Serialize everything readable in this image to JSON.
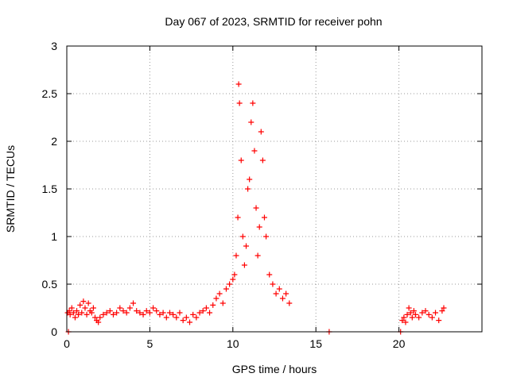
{
  "chart_data": {
    "type": "scatter",
    "title": "Day 067 of 2023, SRMTID for receiver pohn",
    "xlabel": "GPS time / hours",
    "ylabel": "SRMTID / TECUs",
    "xlim": [
      0,
      25
    ],
    "ylim": [
      0,
      3
    ],
    "xticks": [
      0,
      5,
      10,
      15,
      20
    ],
    "xtick_labels": [
      "0",
      "5",
      "10",
      "15",
      "20"
    ],
    "yticks": [
      0,
      0.5,
      1,
      1.5,
      2,
      2.5,
      3
    ],
    "ytick_labels": [
      "0",
      "0.5",
      "1",
      "1.5",
      "2",
      "2.5",
      "3"
    ],
    "grid": true,
    "marker": "+",
    "marker_color": "#ff0000",
    "series": [
      {
        "name": "SRMTID",
        "x": [
          0.05,
          0.1,
          0.15,
          0.2,
          0.3,
          0.4,
          0.5,
          0.6,
          0.7,
          0.8,
          0.9,
          1.0,
          1.1,
          1.2,
          1.3,
          1.4,
          1.5,
          1.6,
          1.7,
          1.8,
          1.9,
          2.0,
          2.2,
          2.4,
          2.6,
          2.8,
          3.0,
          3.2,
          3.4,
          3.6,
          3.8,
          4.0,
          4.2,
          4.4,
          4.6,
          4.8,
          5.0,
          5.2,
          5.4,
          5.6,
          5.8,
          6.0,
          6.2,
          6.4,
          6.6,
          6.8,
          7.0,
          7.2,
          7.4,
          7.6,
          7.8,
          8.0,
          8.2,
          8.4,
          8.6,
          8.8,
          9.0,
          9.2,
          9.4,
          9.6,
          9.8,
          10.0,
          10.1,
          10.2,
          10.3,
          10.35,
          10.4,
          10.5,
          10.6,
          10.7,
          10.8,
          10.9,
          11.0,
          11.1,
          11.2,
          11.3,
          11.4,
          11.5,
          11.6,
          11.7,
          11.8,
          11.9,
          12.0,
          12.2,
          12.4,
          12.6,
          12.8,
          13.0,
          13.2,
          13.4,
          15.8,
          20.1,
          20.2,
          20.3,
          20.4,
          20.5,
          20.6,
          20.7,
          20.8,
          20.9,
          21.0,
          21.2,
          21.4,
          21.6,
          21.8,
          22.0,
          22.2,
          22.4,
          22.6,
          22.7
        ],
        "y": [
          0.2,
          0.0,
          0.22,
          0.18,
          0.25,
          0.2,
          0.15,
          0.22,
          0.18,
          0.28,
          0.2,
          0.32,
          0.25,
          0.18,
          0.3,
          0.22,
          0.2,
          0.25,
          0.15,
          0.12,
          0.1,
          0.15,
          0.18,
          0.2,
          0.22,
          0.18,
          0.2,
          0.25,
          0.22,
          0.2,
          0.25,
          0.3,
          0.22,
          0.2,
          0.18,
          0.22,
          0.2,
          0.25,
          0.22,
          0.18,
          0.2,
          0.15,
          0.2,
          0.18,
          0.15,
          0.2,
          0.12,
          0.15,
          0.1,
          0.18,
          0.15,
          0.2,
          0.22,
          0.25,
          0.2,
          0.28,
          0.35,
          0.4,
          0.3,
          0.45,
          0.5,
          0.55,
          0.6,
          0.8,
          1.2,
          2.6,
          2.4,
          1.8,
          1.0,
          0.7,
          0.9,
          1.5,
          1.6,
          2.2,
          2.4,
          1.9,
          1.3,
          0.8,
          1.1,
          2.1,
          1.8,
          1.2,
          1.0,
          0.6,
          0.5,
          0.4,
          0.45,
          0.35,
          0.4,
          0.3,
          0.0,
          0.0,
          0.12,
          0.15,
          0.1,
          0.18,
          0.25,
          0.2,
          0.15,
          0.22,
          0.18,
          0.15,
          0.2,
          0.22,
          0.18,
          0.15,
          0.2,
          0.12,
          0.22,
          0.25
        ]
      }
    ]
  }
}
